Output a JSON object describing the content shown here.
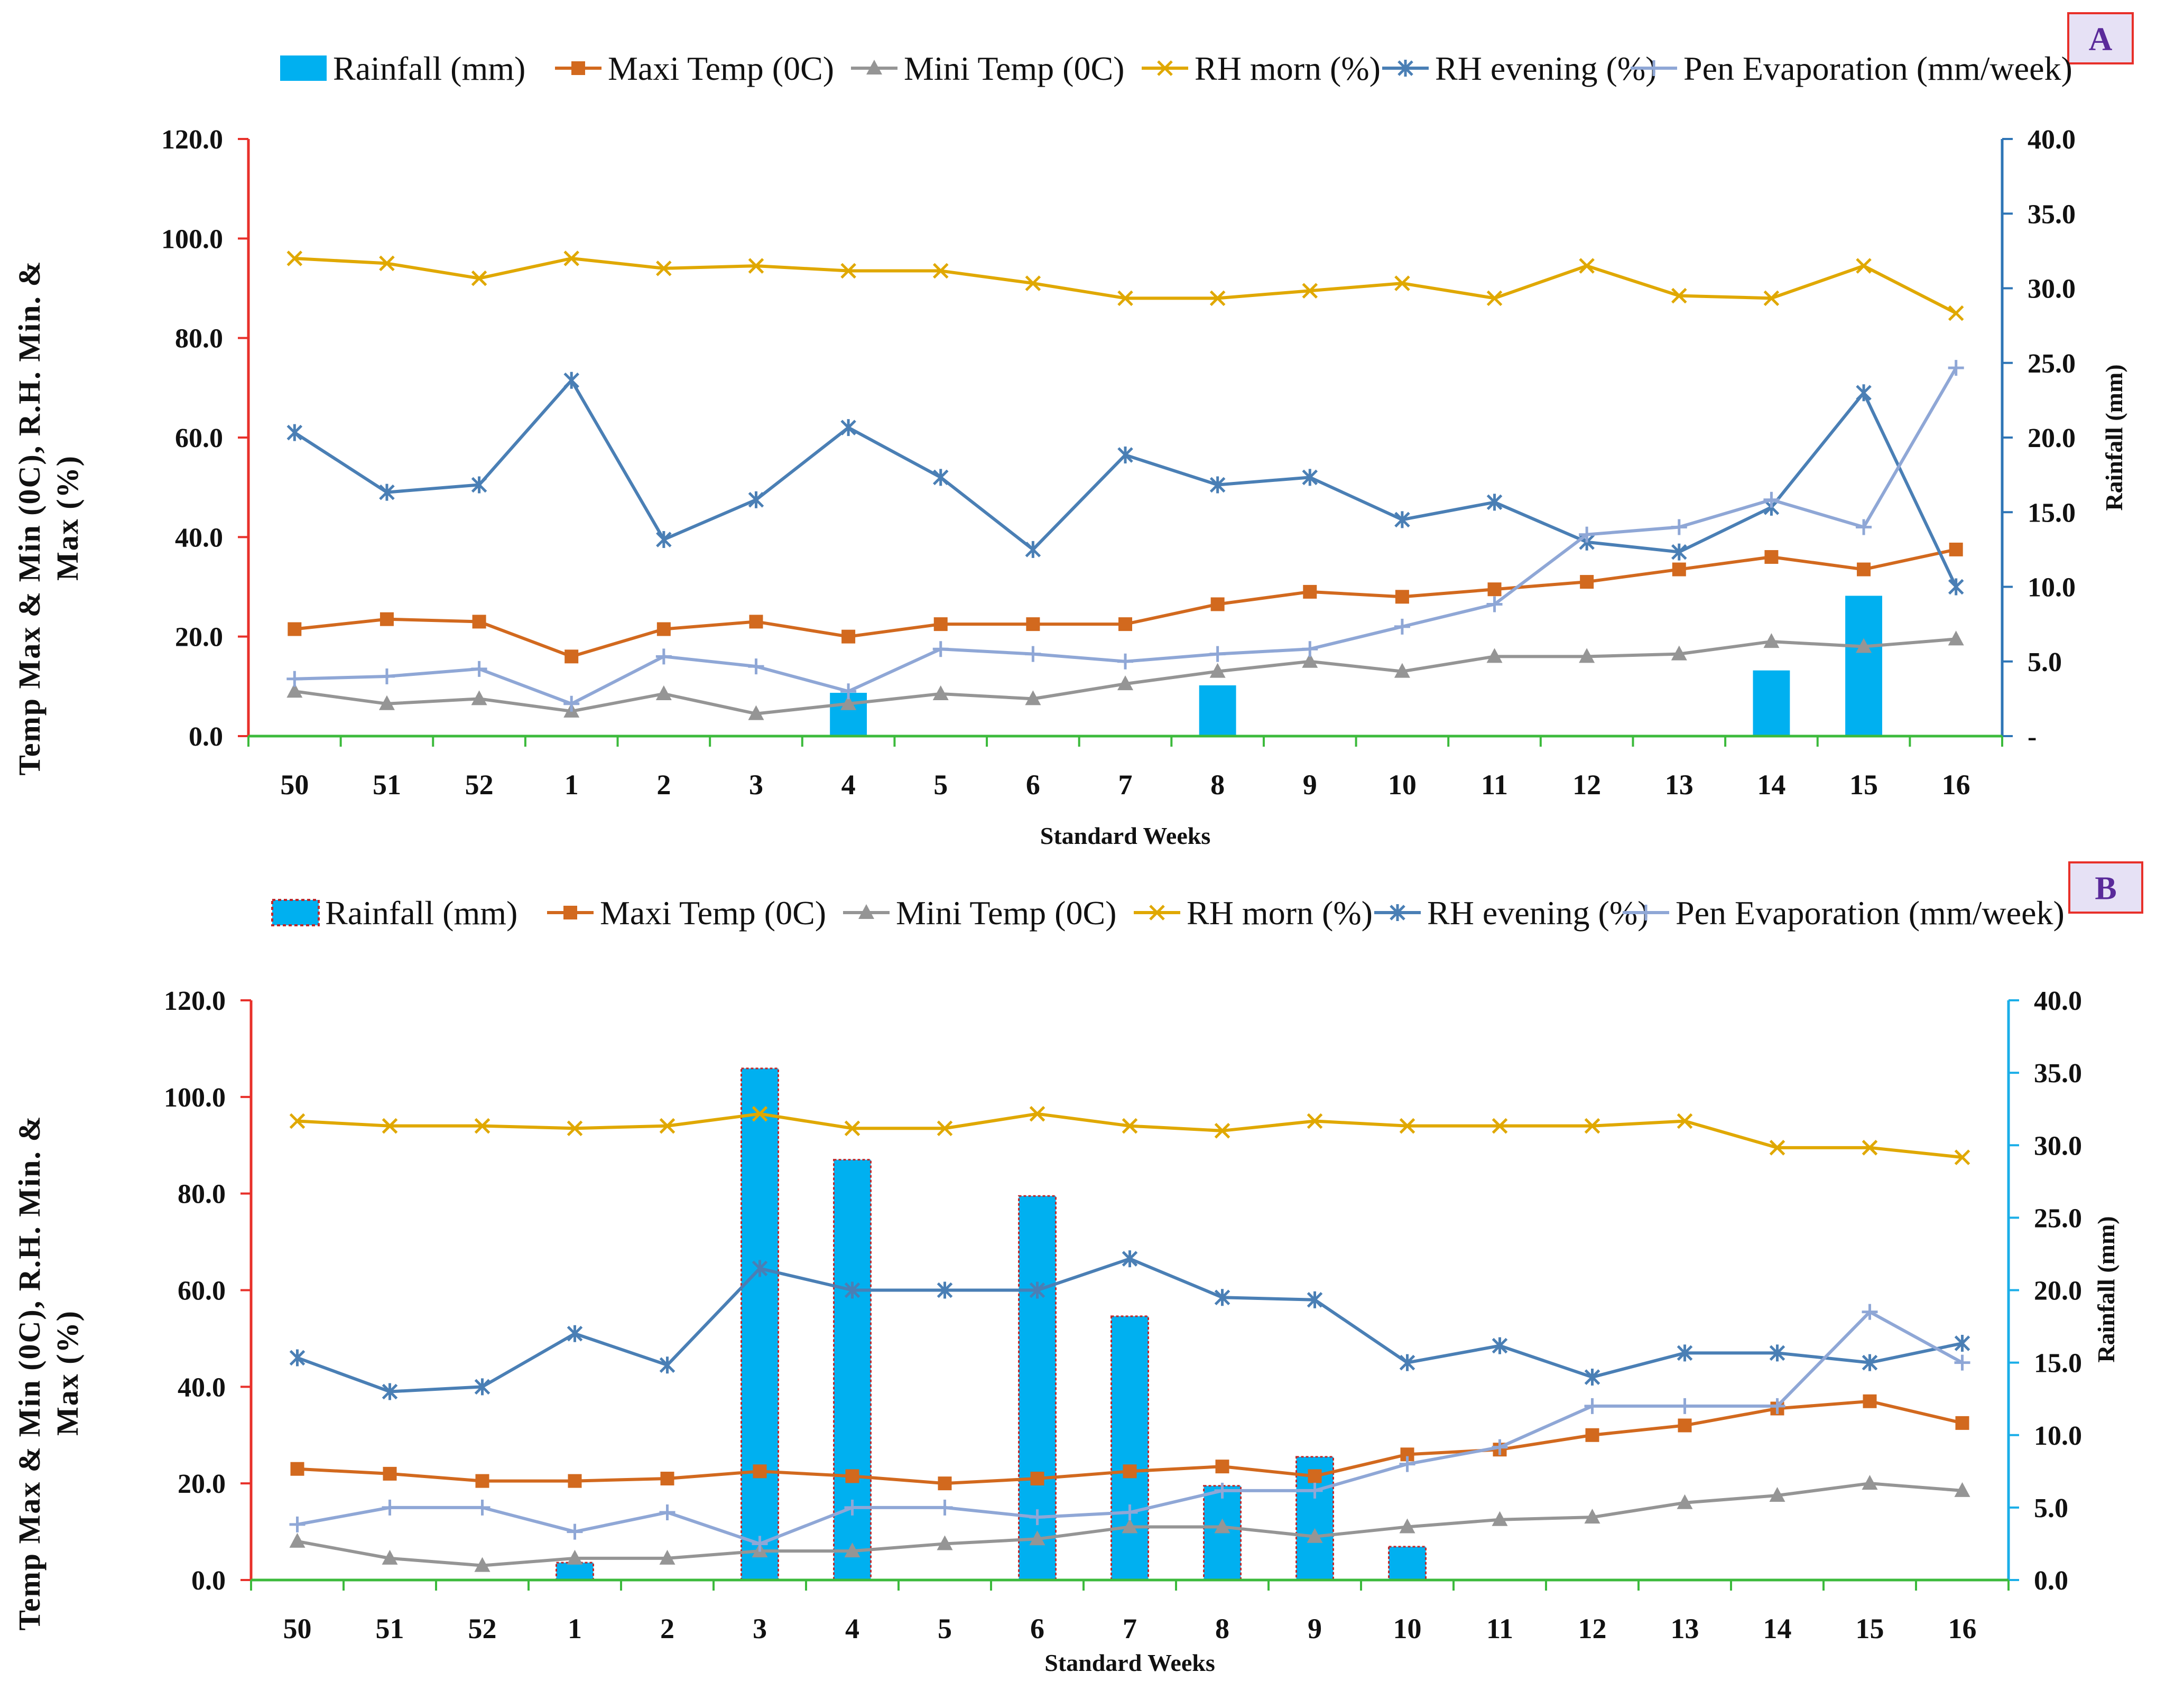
{
  "chart_data": [
    {
      "type": "bar+line",
      "panel_label": "A",
      "categories": [
        "50",
        "51",
        "52",
        "1",
        "2",
        "3",
        "4",
        "5",
        "6",
        "7",
        "8",
        "9",
        "10",
        "11",
        "12",
        "13",
        "14",
        "15",
        "16"
      ],
      "bar_series": {
        "name": "Rainfall (mm)",
        "axis": "right",
        "color": "#00b0f0",
        "values": [
          0,
          0,
          0,
          0,
          0,
          0,
          2.9,
          0,
          0,
          0,
          3.4,
          0,
          0,
          0,
          0,
          0,
          4.4,
          9.4,
          0
        ]
      },
      "line_series": [
        {
          "name": "Maxi Temp (0C)",
          "color": "#d2691e",
          "marker": "square",
          "values": [
            21.5,
            23.5,
            23.0,
            16.0,
            21.5,
            23.0,
            20.0,
            22.5,
            22.5,
            22.5,
            26.5,
            29.0,
            28.0,
            29.5,
            31.0,
            33.5,
            36.0,
            33.5,
            37.5
          ]
        },
        {
          "name": "Mini Temp (0C)",
          "color": "#959595",
          "marker": "triangle",
          "values": [
            9.0,
            6.5,
            7.5,
            5.0,
            8.5,
            4.5,
            6.5,
            8.5,
            7.5,
            10.5,
            13.0,
            15.0,
            13.0,
            16.0,
            16.0,
            16.5,
            19.0,
            18.0,
            19.5
          ]
        },
        {
          "name": "RH morn (%)",
          "color": "#e0a800",
          "marker": "x",
          "values": [
            96.0,
            95.0,
            92.0,
            96.0,
            94.0,
            94.5,
            93.5,
            93.5,
            91.0,
            88.0,
            88.0,
            89.5,
            91.0,
            88.0,
            94.5,
            88.5,
            88.0,
            94.5,
            85.0
          ]
        },
        {
          "name": "RH evening (%)",
          "color": "#4a7fb5",
          "marker": "star",
          "values": [
            61.0,
            49.0,
            50.5,
            71.5,
            39.5,
            47.5,
            62.0,
            52.0,
            37.5,
            56.5,
            50.5,
            52.0,
            43.5,
            47.0,
            39.0,
            37.0,
            46.0,
            69.0,
            30.0
          ]
        },
        {
          "name": "Pen Evaporation (mm/week)",
          "color": "#8fa7d6",
          "marker": "plus",
          "values": [
            11.5,
            12.0,
            13.5,
            6.5,
            16.0,
            14.0,
            9.0,
            17.5,
            16.5,
            15.0,
            16.5,
            17.5,
            22.0,
            26.5,
            40.5,
            42.0,
            47.5,
            42.0,
            74.0
          ]
        }
      ],
      "left_axis": {
        "label": "Temp Max & Min (0C), R.H. Min. & Max (%)",
        "ylim": [
          0,
          120
        ],
        "ticks": [
          "0.0",
          "20.0",
          "40.0",
          "60.0",
          "80.0",
          "100.0",
          "120.0"
        ]
      },
      "right_axis": {
        "label": "Rainfall (mm)",
        "ylim": [
          0,
          40
        ],
        "ticks": [
          "-",
          "5.0",
          "10.0",
          "15.0",
          "20.0",
          "25.0",
          "30.0",
          "35.0",
          "40.0"
        ]
      },
      "xlabel": "Standard Weeks",
      "legend_position": "top"
    },
    {
      "type": "bar+line",
      "panel_label": "B",
      "categories": [
        "50",
        "51",
        "52",
        "1",
        "2",
        "3",
        "4",
        "5",
        "6",
        "7",
        "8",
        "9",
        "10",
        "11",
        "12",
        "13",
        "14",
        "15",
        "16"
      ],
      "bar_series": {
        "name": "Rainfall (mm)",
        "axis": "right",
        "color": "#00b0f0",
        "values": [
          0,
          0,
          0,
          1.2,
          0,
          35.3,
          29.0,
          0,
          26.5,
          18.2,
          6.5,
          8.5,
          2.3,
          0,
          0,
          0,
          0,
          0,
          0
        ]
      },
      "line_series": [
        {
          "name": "Maxi Temp (0C)",
          "color": "#d2691e",
          "marker": "square",
          "values": [
            23.0,
            22.0,
            20.5,
            20.5,
            21.0,
            22.5,
            21.5,
            20.0,
            21.0,
            22.5,
            23.5,
            21.5,
            26.0,
            27.0,
            30.0,
            32.0,
            35.5,
            37.0,
            32.5
          ]
        },
        {
          "name": "Mini Temp (0C)",
          "color": "#959595",
          "marker": "triangle",
          "values": [
            8.0,
            4.5,
            3.0,
            4.5,
            4.5,
            6.0,
            6.0,
            7.5,
            8.5,
            11.0,
            11.0,
            9.0,
            11.0,
            12.5,
            13.0,
            16.0,
            17.5,
            20.0,
            18.5
          ]
        },
        {
          "name": "RH morn (%)",
          "color": "#e0a800",
          "marker": "x",
          "values": [
            95.0,
            94.0,
            94.0,
            93.5,
            94.0,
            96.5,
            93.5,
            93.5,
            96.5,
            94.0,
            93.0,
            95.0,
            94.0,
            94.0,
            94.0,
            95.0,
            89.5,
            89.5,
            87.5
          ]
        },
        {
          "name": "RH evening (%)",
          "color": "#4a7fb5",
          "marker": "star",
          "values": [
            46.0,
            39.0,
            40.0,
            51.0,
            44.5,
            64.5,
            60.0,
            60.0,
            60.0,
            66.5,
            58.5,
            58.0,
            45.0,
            48.5,
            42.0,
            47.0,
            47.0,
            45.0,
            49.0
          ]
        },
        {
          "name": "Pen Evaporation (mm/week)",
          "color": "#8fa7d6",
          "marker": "plus",
          "values": [
            11.5,
            15.0,
            15.0,
            10.0,
            14.0,
            7.5,
            15.0,
            15.0,
            13.0,
            14.0,
            18.5,
            18.5,
            24.0,
            27.5,
            36.0,
            36.0,
            36.0,
            55.5,
            45.0
          ]
        }
      ],
      "left_axis": {
        "label": "Temp Max & Min (0C), R.H. Min. & Max (%)",
        "ylim": [
          0,
          120
        ],
        "ticks": [
          "0.0",
          "20.0",
          "40.0",
          "60.0",
          "80.0",
          "100.0",
          "120.0"
        ]
      },
      "right_axis": {
        "label": "Rainfall (mm)",
        "ylim": [
          0,
          40
        ],
        "ticks": [
          "0.0",
          "5.0",
          "10.0",
          "15.0",
          "20.0",
          "25.0",
          "30.0",
          "35.0",
          "40.0"
        ]
      },
      "xlabel": "Standard Weeks",
      "legend_position": "top"
    }
  ]
}
